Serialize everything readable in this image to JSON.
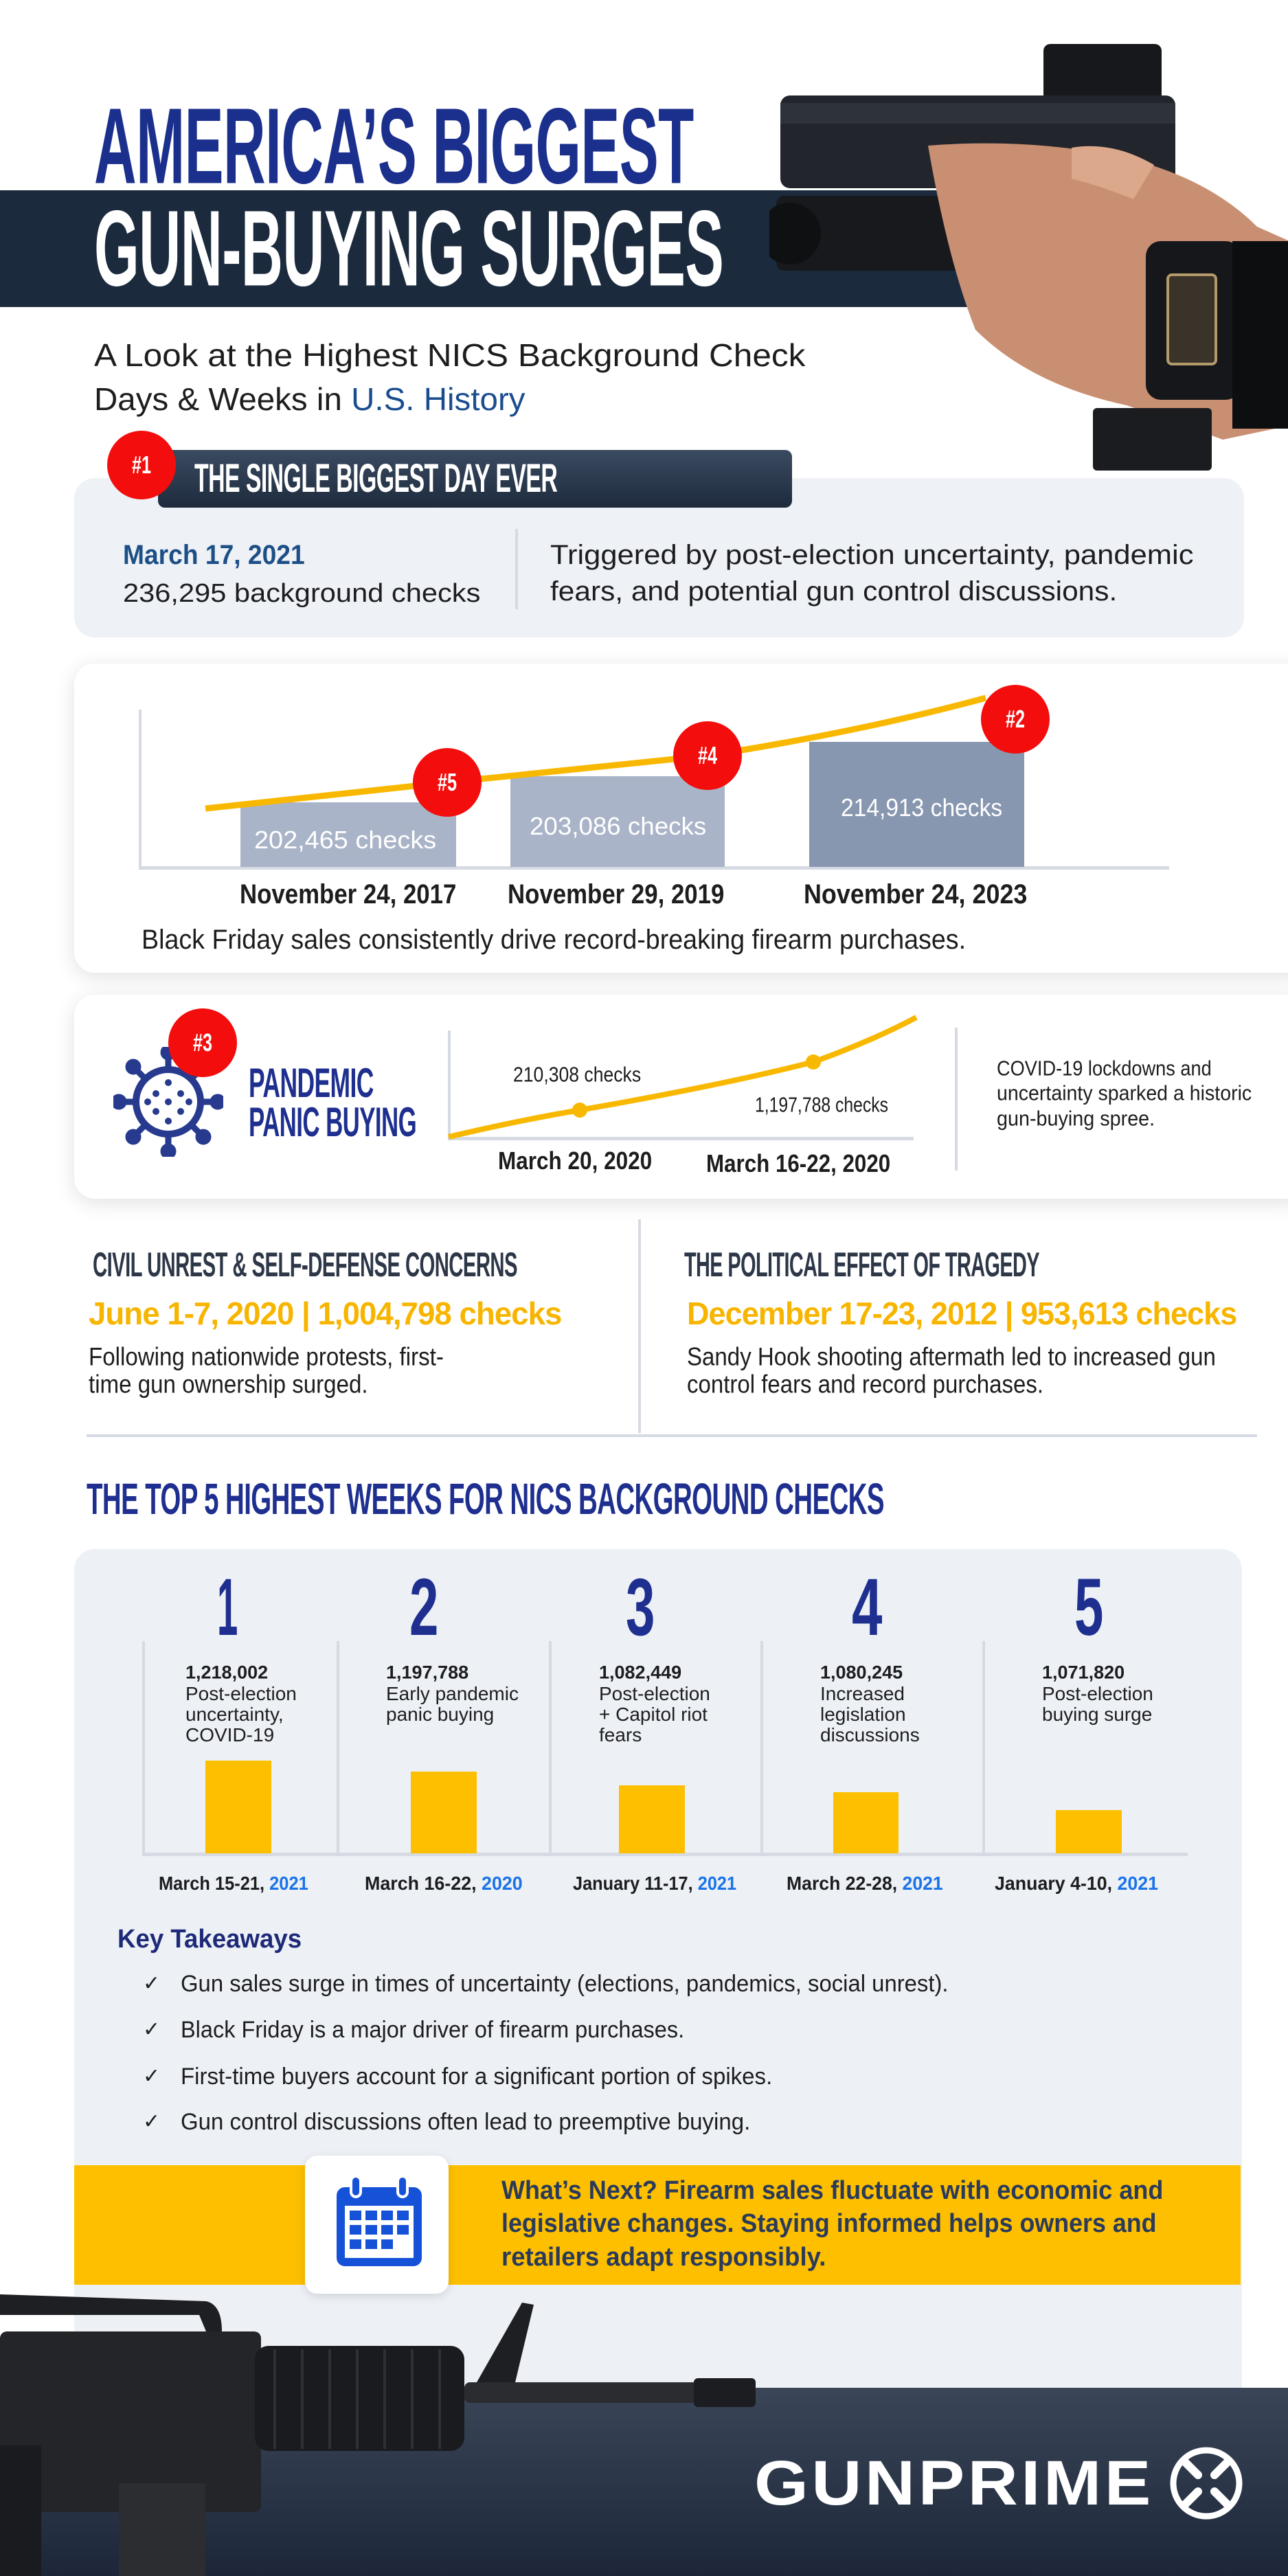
{
  "header": {
    "title_line1": "AMERICA’S BIGGEST",
    "title_line2": "GUN-BUYING SURGES",
    "subtitle_line1": "A Look at the Highest NICS Background Check",
    "subtitle_line2_prefix": "Days & Weeks in ",
    "subtitle_line2_highlight": "U.S. History"
  },
  "biggest_day": {
    "rank": "#1",
    "title": "THE SINGLE BIGGEST DAY EVER",
    "date": "March 17, 2021",
    "checks": "236,295 background checks",
    "description_lines": [
      "Triggered by post-election uncertainty, pandemic",
      "fears, and potential gun control discussions."
    ]
  },
  "black_friday": {
    "items": [
      {
        "rank": "#5",
        "date": "November 24, 2017",
        "checks": "202,465  checks"
      },
      {
        "rank": "#4",
        "date": "November 29, 2019",
        "checks": "203,086 checks"
      },
      {
        "rank": "#2",
        "date": "November 24, 2023",
        "checks": "214,913 checks"
      }
    ],
    "caption": "Black Friday sales consistently drive record-breaking firearm purchases."
  },
  "pandemic": {
    "rank": "#3",
    "title_line1": "PANDEMIC",
    "title_line2": "PANIC BUYING",
    "points": [
      {
        "label": "210,308 checks",
        "date": "March 20, 2020"
      },
      {
        "label": "1,197,788 checks",
        "date": "March 16-22, 2020"
      }
    ],
    "description_lines": [
      "COVID-19 lockdowns and",
      "uncertainty sparked a historic",
      "gun-buying spree."
    ]
  },
  "civil_unrest": {
    "title": "CIVIL UNREST & SELF-DEFENSE CONCERNS",
    "highlight": "June 1-7, 2020 | 1,004,798 checks",
    "description_lines": [
      "Following nationwide protests, first-",
      "time gun ownership surged."
    ]
  },
  "tragedy": {
    "title": "THE POLITICAL EFFECT OF TRAGEDY",
    "highlight": "December 17-23, 2012 | 953,613 checks",
    "description_lines": [
      "Sandy Hook shooting aftermath led to increased gun",
      "control fears and record purchases."
    ]
  },
  "top5": {
    "title": "THE TOP 5 HIGHEST WEEKS FOR NICS BACKGROUND CHECKS",
    "weeks": [
      {
        "rank": "1",
        "checks": "1,218,002",
        "reason_lines": [
          "Post-election",
          "uncertainty,",
          "COVID-19"
        ],
        "date": "March 15-21, ",
        "year": "2021"
      },
      {
        "rank": "2",
        "checks": "1,197,788",
        "reason_lines": [
          "Early pandemic",
          "panic buying"
        ],
        "date": "March 16-22, ",
        "year": "2020"
      },
      {
        "rank": "3",
        "checks": "1,082,449",
        "reason_lines": [
          "Post-election",
          "+ Capitol riot",
          "fears"
        ],
        "date": "January 11-17, ",
        "year": "2021"
      },
      {
        "rank": "4",
        "checks": "1,080,245",
        "reason_lines": [
          "Increased",
          "legislation",
          "discussions"
        ],
        "date": "March 22-28, ",
        "year": "2021"
      },
      {
        "rank": "5",
        "checks": "1,071,820",
        "reason_lines": [
          "Post-election",
          "buying surge"
        ],
        "date": "January 4-10, ",
        "year": "2021"
      }
    ]
  },
  "takeaways": {
    "title": "Key Takeaways",
    "check_icon": "✓",
    "items": [
      "Gun sales surge in times of uncertainty (elections, pandemics, social unrest).",
      "Black Friday is a major driver of firearm purchases.",
      "First-time buyers account for a significant portion of spikes.",
      "Gun control discussions often lead to preemptive buying."
    ]
  },
  "whats_next": {
    "icon": "calendar-icon",
    "lines": [
      "What’s Next? Firearm sales fluctuate with economic and",
      "legislative changes. Staying informed helps owners and",
      "retailers adapt responsibly."
    ]
  },
  "footer": {
    "brand": "GUNPRIME"
  },
  "colors": {
    "navy": "#1b2f8c",
    "dark_band": "#1b2a3d",
    "badge_red": "#f30d0d",
    "yellow": "#fdbf00",
    "year_blue": "#1a73e8",
    "card_gray": "#edf1f6"
  }
}
